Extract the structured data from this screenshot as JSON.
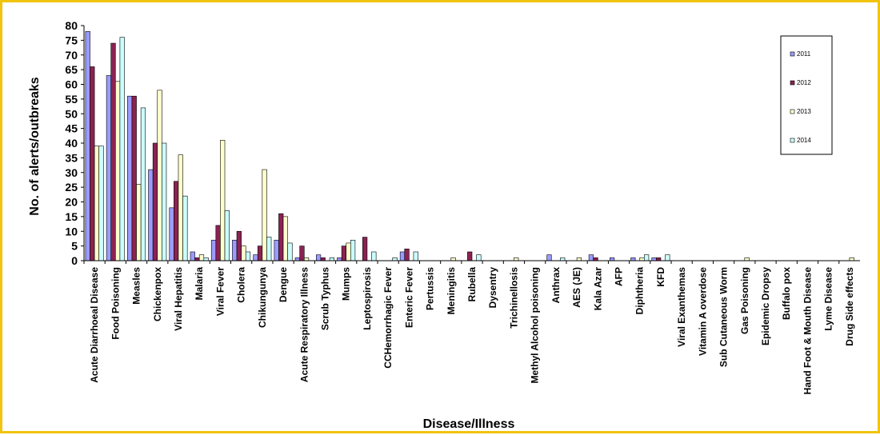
{
  "chart_data": {
    "type": "bar",
    "ylabel": "No. of alerts/outbreaks",
    "xlabel": "Disease/Illness",
    "ylim": [
      0,
      80
    ],
    "yticks": [
      0,
      5,
      10,
      15,
      20,
      25,
      30,
      35,
      40,
      45,
      50,
      55,
      60,
      65,
      70,
      75,
      80
    ],
    "grid": false,
    "legend_position": "top-right",
    "colors": {
      "2011": "#9b9bff",
      "2012": "#8b2252",
      "2013": "#ffffcc",
      "2014": "#ccffff"
    },
    "categories": [
      "Acute Diarrhoeal Disease",
      "Food Poisoning",
      "Measles",
      "Chickenpox",
      "Viral Hepatitis",
      "Malaria",
      "Viral Fever",
      "Cholera",
      "Chikungunya",
      "Dengue",
      "Acute Respiratory Illness",
      "Scrub Typhus",
      "Mumps",
      "Leptospirosis",
      "CCHemorrhagic Fever",
      "Enteric Fever",
      "Pertussis",
      "Meningitis",
      "Rubella",
      "Dysentry",
      "Trichinellosis",
      "Methyl Alcohol poisoning",
      "Anthrax",
      "AES (JE)",
      "Kala Azar",
      "AFP",
      "Diphtheria",
      "KFD",
      "Viral Exanthemas",
      "Vitamin A overdose",
      "Sub Cutaneous Worm",
      "Gas Poisoning",
      "Epidemic Dropsy",
      "Buffalo pox",
      "Hand Foot & Mouth Disease",
      "Lyme Disease",
      "Drug Side effects"
    ],
    "series": [
      {
        "name": "2011",
        "values": [
          78,
          63,
          56,
          31,
          18,
          3,
          7,
          7,
          2,
          7,
          1,
          2,
          1,
          0,
          0,
          3,
          0,
          0,
          0,
          0,
          0,
          0,
          2,
          0,
          2,
          1,
          1,
          1,
          0,
          0,
          0,
          0,
          0,
          0,
          0,
          0,
          0
        ]
      },
      {
        "name": "2012",
        "values": [
          66,
          74,
          56,
          40,
          27,
          1,
          12,
          10,
          5,
          16,
          5,
          1,
          5,
          8,
          0,
          4,
          0,
          0,
          3,
          0,
          0,
          0,
          0,
          0,
          1,
          0,
          0,
          1,
          0,
          0,
          0,
          0,
          0,
          0,
          0,
          0,
          0
        ]
      },
      {
        "name": "2013",
        "values": [
          39,
          61,
          26,
          58,
          36,
          2,
          41,
          5,
          31,
          15,
          1,
          0,
          6,
          0,
          0,
          0,
          0,
          1,
          0,
          0,
          1,
          0,
          0,
          1,
          0,
          0,
          1,
          0,
          0,
          0,
          0,
          1,
          0,
          0,
          0,
          0,
          1
        ]
      },
      {
        "name": "2014",
        "values": [
          39,
          76,
          52,
          40,
          22,
          1,
          17,
          3,
          8,
          6,
          0,
          1,
          7,
          3,
          1,
          3,
          0,
          0,
          2,
          0,
          0,
          0,
          1,
          0,
          0,
          0,
          2,
          2,
          0,
          0,
          0,
          0,
          0,
          0,
          0,
          0,
          0
        ]
      }
    ]
  }
}
